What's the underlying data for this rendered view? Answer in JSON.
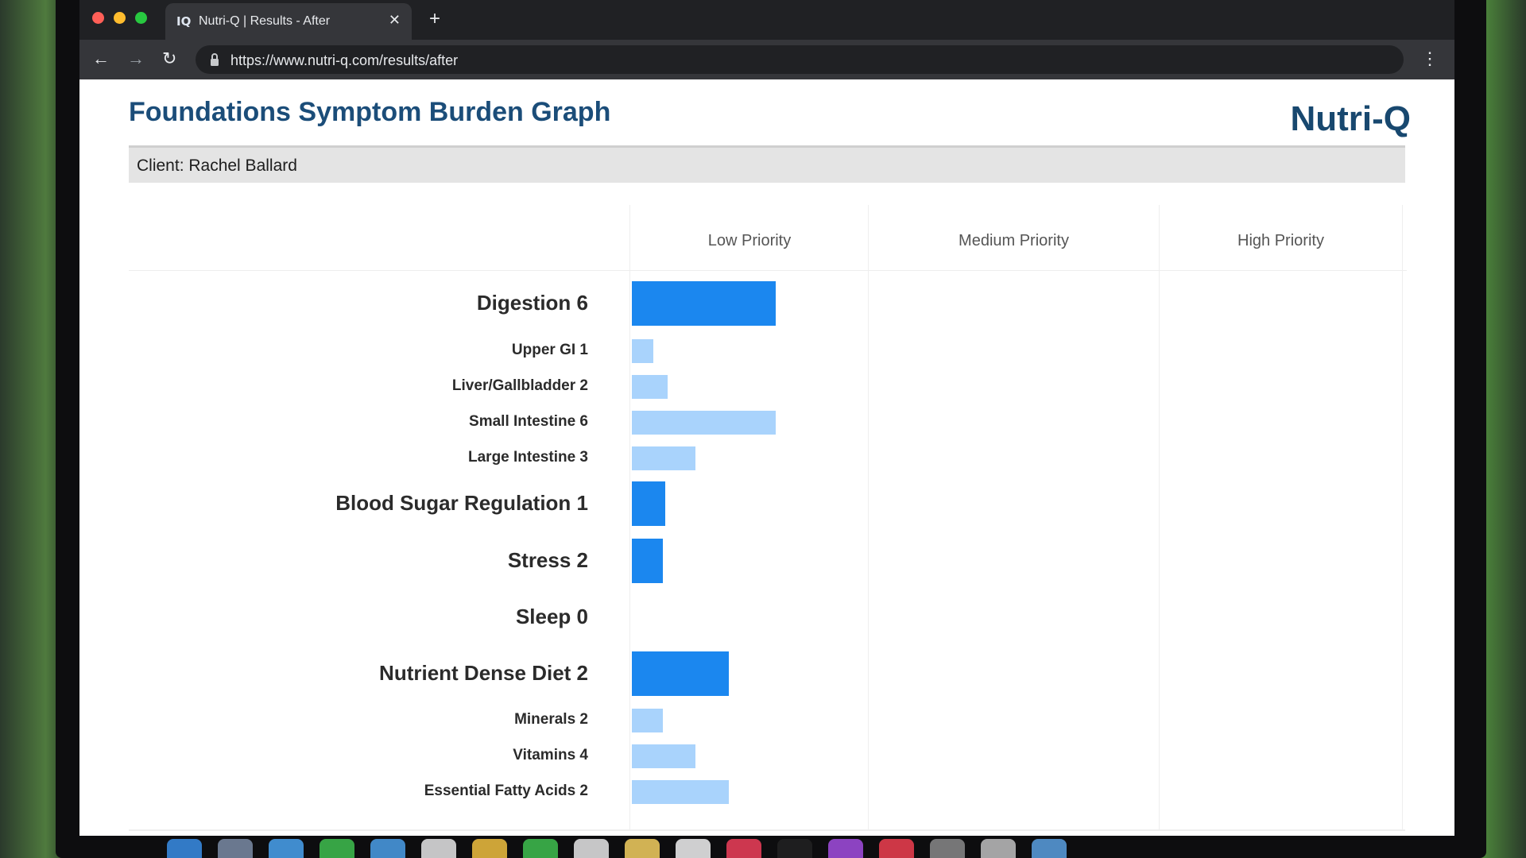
{
  "browser": {
    "tab": {
      "favicon": "IQ",
      "title": "Nutri-Q | Results - After",
      "close_glyph": "✕"
    },
    "new_tab_glyph": "+",
    "nav": {
      "back_glyph": "←",
      "forward_glyph": "→",
      "reload_glyph": "↻",
      "menu_glyph": "⋮"
    },
    "url": "https://www.nutri-q.com/results/after"
  },
  "header": {
    "title": "Foundations Symptom Burden Graph",
    "brand": "Nutri-Q",
    "client": "Client: Rachel Ballard"
  },
  "chart_data": {
    "type": "bar",
    "orientation": "horizontal",
    "priority_columns": [
      "Low Priority",
      "Medium Priority",
      "High Priority"
    ],
    "rows": [
      {
        "label": "Digestion 6",
        "value": 6,
        "level": "main"
      },
      {
        "label": "Upper GI 1",
        "value": 1,
        "level": "sub"
      },
      {
        "label": "Liver/Gallbladder 2",
        "value": 2,
        "level": "sub"
      },
      {
        "label": "Small Intestine 6",
        "value": 6,
        "level": "sub"
      },
      {
        "label": "Large Intestine 3",
        "value": 3,
        "level": "sub"
      },
      {
        "label": "Blood Sugar Regulation 1",
        "value": 1,
        "level": "main"
      },
      {
        "label": "Stress 2",
        "value": 2,
        "level": "main"
      },
      {
        "label": "Sleep 0",
        "value": 0,
        "level": "main"
      },
      {
        "label": "Nutrient Dense Diet 2",
        "value": 2,
        "level": "main"
      },
      {
        "label": "Minerals 2",
        "value": 2,
        "level": "sub"
      },
      {
        "label": "Vitamins 4",
        "value": 4,
        "level": "sub"
      },
      {
        "label": "Essential Fatty Acids 2",
        "value": 2,
        "level": "sub"
      }
    ],
    "bar_fraction_of_low_column": [
      0.61,
      0.09,
      0.15,
      0.61,
      0.27,
      0.14,
      0.13,
      0.0,
      0.41,
      0.13,
      0.27,
      0.41
    ]
  },
  "colors": {
    "main_bar": "#1b87ef",
    "sub_bar": "#a9d3fc",
    "title": "#1b4d79",
    "chrome_dark": "#202124"
  },
  "dock": {
    "icons": [
      "finder-icon",
      "launchpad-icon",
      "safari-icon",
      "messages-icon",
      "mail-icon",
      "maps-icon",
      "photos-icon",
      "facetime-icon",
      "calendar-icon",
      "notes-icon",
      "reminders-icon",
      "music-icon",
      "tv-icon",
      "podcasts-icon",
      "news-icon",
      "settings-icon",
      "preview-icon",
      "folder-icon"
    ]
  }
}
